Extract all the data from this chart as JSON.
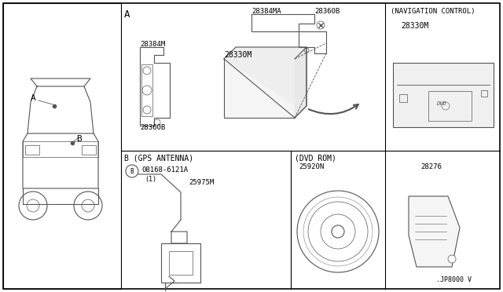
{
  "background_color": "#ffffff",
  "border_color": "#000000",
  "line_color": "#555555",
  "text_color": "#000000",
  "section_A_label": "A",
  "nav_control_label": "(NAVIGATION CONTROL)",
  "gps_antenna_label": "B (GPS ANTENNA)",
  "dvd_rom_label": "(DVD ROM)",
  "fig_code": ".JP8000 V",
  "part_28384MA": "28384MA",
  "part_28360B_top": "28360B",
  "part_28384M": "28384M",
  "part_28330M": "28330M",
  "part_28360B_bot": "28360B",
  "part_28330M_nav": "28330M",
  "part_08168": "08168-6121A",
  "part_1": "(1)",
  "part_25975M": "25975M",
  "part_25920N": "25920N",
  "part_28276": "28276"
}
